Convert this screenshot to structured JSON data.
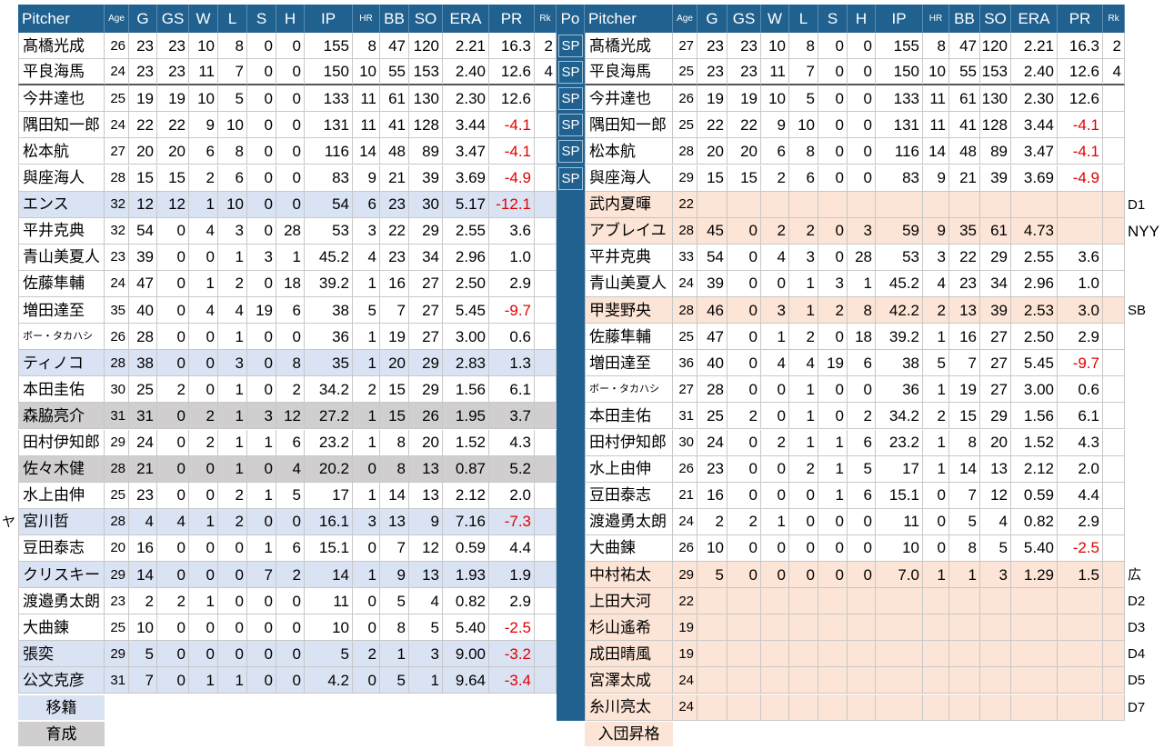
{
  "left": {
    "header": [
      "Pitcher",
      "Age",
      "G",
      "GS",
      "W",
      "L",
      "S",
      "H",
      "IP",
      "HR",
      "BB",
      "SO",
      "ERA",
      "PR",
      "Rk"
    ],
    "rows": [
      {
        "name": "髙橋光成",
        "stats": [
          "26",
          "23",
          "23",
          "10",
          "8",
          "0",
          "0",
          "155",
          "8",
          "47",
          "120",
          "2.21",
          "16.3",
          "2"
        ]
      },
      {
        "name": "平良海馬",
        "stats": [
          "24",
          "23",
          "23",
          "11",
          "7",
          "0",
          "0",
          "150",
          "10",
          "55",
          "153",
          "2.40",
          "12.6",
          "4"
        ]
      },
      {
        "name": "今井達也",
        "stats": [
          "25",
          "19",
          "19",
          "10",
          "5",
          "0",
          "0",
          "133",
          "11",
          "61",
          "130",
          "2.30",
          "12.6"
        ]
      },
      {
        "name": "隅田知一郎",
        "stats": [
          "24",
          "22",
          "22",
          "9",
          "10",
          "0",
          "0",
          "131",
          "11",
          "41",
          "128",
          "3.44",
          "-4.1"
        ]
      },
      {
        "name": "松本航",
        "stats": [
          "27",
          "20",
          "20",
          "6",
          "8",
          "0",
          "0",
          "116",
          "14",
          "48",
          "89",
          "3.47",
          "-4.1"
        ]
      },
      {
        "name": "與座海人",
        "stats": [
          "28",
          "15",
          "15",
          "2",
          "6",
          "0",
          "0",
          "83",
          "9",
          "21",
          "39",
          "3.69",
          "-4.9"
        ]
      },
      {
        "name": "エンス",
        "stats": [
          "32",
          "12",
          "12",
          "1",
          "10",
          "0",
          "0",
          "54",
          "6",
          "23",
          "30",
          "5.17",
          "-12.1"
        ],
        "fill": "#dae3f3"
      },
      {
        "name": "平井克典",
        "stats": [
          "32",
          "54",
          "0",
          "4",
          "3",
          "0",
          "28",
          "53",
          "3",
          "22",
          "29",
          "2.55",
          "3.6"
        ]
      },
      {
        "name": "青山美夏人",
        "stats": [
          "23",
          "39",
          "0",
          "0",
          "1",
          "3",
          "1",
          "45.2",
          "4",
          "23",
          "34",
          "2.96",
          "1.0"
        ]
      },
      {
        "name": "佐藤隼輔",
        "stats": [
          "24",
          "47",
          "0",
          "1",
          "2",
          "0",
          "18",
          "39.2",
          "1",
          "16",
          "27",
          "2.50",
          "2.9"
        ]
      },
      {
        "name": "増田達至",
        "stats": [
          "35",
          "40",
          "0",
          "4",
          "4",
          "19",
          "6",
          "38",
          "5",
          "7",
          "27",
          "5.45",
          "-9.7"
        ]
      },
      {
        "name": "ボー・タカハシ",
        "stats": [
          "26",
          "28",
          "0",
          "0",
          "1",
          "0",
          "0",
          "36",
          "1",
          "19",
          "27",
          "3.00",
          "0.6"
        ]
      },
      {
        "name": "ティノコ",
        "stats": [
          "28",
          "38",
          "0",
          "0",
          "3",
          "0",
          "8",
          "35",
          "1",
          "20",
          "29",
          "2.83",
          "1.3"
        ],
        "fill": "#dae3f3"
      },
      {
        "name": "本田圭佑",
        "stats": [
          "30",
          "25",
          "2",
          "0",
          "1",
          "0",
          "2",
          "34.2",
          "2",
          "15",
          "29",
          "1.56",
          "6.1"
        ]
      },
      {
        "name": "森脇亮介",
        "stats": [
          "31",
          "31",
          "0",
          "2",
          "1",
          "3",
          "12",
          "27.2",
          "1",
          "15",
          "26",
          "1.95",
          "3.7"
        ],
        "fill": "#d0cece"
      },
      {
        "name": "田村伊知郎",
        "stats": [
          "29",
          "24",
          "0",
          "2",
          "1",
          "1",
          "6",
          "23.2",
          "1",
          "8",
          "20",
          "1.52",
          "4.3"
        ]
      },
      {
        "name": "佐々木健",
        "stats": [
          "28",
          "21",
          "0",
          "0",
          "1",
          "0",
          "4",
          "20.2",
          "0",
          "8",
          "13",
          "0.87",
          "5.2"
        ],
        "fill": "#d0cece"
      },
      {
        "name": "水上由伸",
        "stats": [
          "25",
          "23",
          "0",
          "0",
          "2",
          "1",
          "5",
          "17",
          "1",
          "14",
          "13",
          "2.12",
          "2.0"
        ]
      },
      {
        "name": "宮川哲",
        "stats": [
          "28",
          "4",
          "4",
          "1",
          "2",
          "0",
          "0",
          "16.1",
          "3",
          "13",
          "9",
          "7.16",
          "-7.3"
        ],
        "fill": "#dae3f3",
        "note": "ヤ"
      },
      {
        "name": "豆田泰志",
        "stats": [
          "20",
          "16",
          "0",
          "0",
          "0",
          "1",
          "6",
          "15.1",
          "0",
          "7",
          "12",
          "0.59",
          "4.4"
        ]
      },
      {
        "name": "クリスキー",
        "stats": [
          "29",
          "14",
          "0",
          "0",
          "0",
          "7",
          "2",
          "14",
          "1",
          "9",
          "13",
          "1.93",
          "1.9"
        ],
        "fill": "#dae3f3"
      },
      {
        "name": "渡邉勇太朗",
        "stats": [
          "23",
          "2",
          "2",
          "1",
          "0",
          "0",
          "0",
          "11",
          "0",
          "5",
          "4",
          "0.82",
          "2.9"
        ]
      },
      {
        "name": "大曲錬",
        "stats": [
          "25",
          "10",
          "0",
          "0",
          "0",
          "0",
          "0",
          "10",
          "0",
          "8",
          "5",
          "5.40",
          "-2.5"
        ]
      },
      {
        "name": "張奕",
        "stats": [
          "29",
          "5",
          "0",
          "0",
          "0",
          "0",
          "0",
          "5",
          "2",
          "1",
          "3",
          "9.00",
          "-3.2"
        ],
        "fill": "#dae3f3"
      },
      {
        "name": "公文克彦",
        "stats": [
          "31",
          "7",
          "0",
          "1",
          "1",
          "0",
          "0",
          "4.2",
          "0",
          "5",
          "1",
          "9.64",
          "-3.4"
        ],
        "fill": "#dae3f3"
      }
    ],
    "legend": [
      {
        "label": "移籍",
        "fill": "#dae3f3"
      },
      {
        "label": "育成",
        "fill": "#d0cece"
      }
    ]
  },
  "po": {
    "header": "Po",
    "values": [
      "SP",
      "SP",
      "SP",
      "SP",
      "SP",
      "SP"
    ]
  },
  "right": {
    "header": [
      "Pitcher",
      "Age",
      "G",
      "GS",
      "W",
      "L",
      "S",
      "H",
      "IP",
      "HR",
      "BB",
      "SO",
      "ERA",
      "PR",
      "Rk"
    ],
    "rows": [
      {
        "name": "髙橋光成",
        "stats": [
          "27",
          "23",
          "23",
          "10",
          "8",
          "0",
          "0",
          "155",
          "8",
          "47",
          "120",
          "2.21",
          "16.3",
          "2"
        ]
      },
      {
        "name": "平良海馬",
        "stats": [
          "25",
          "23",
          "23",
          "11",
          "7",
          "0",
          "0",
          "150",
          "10",
          "55",
          "153",
          "2.40",
          "12.6",
          "4"
        ]
      },
      {
        "name": "今井達也",
        "stats": [
          "26",
          "19",
          "19",
          "10",
          "5",
          "0",
          "0",
          "133",
          "11",
          "61",
          "130",
          "2.30",
          "12.6"
        ]
      },
      {
        "name": "隅田知一郎",
        "stats": [
          "25",
          "22",
          "22",
          "9",
          "10",
          "0",
          "0",
          "131",
          "11",
          "41",
          "128",
          "3.44",
          "-4.1"
        ]
      },
      {
        "name": "松本航",
        "stats": [
          "28",
          "20",
          "20",
          "6",
          "8",
          "0",
          "0",
          "116",
          "14",
          "48",
          "89",
          "3.47",
          "-4.1"
        ]
      },
      {
        "name": "與座海人",
        "stats": [
          "29",
          "15",
          "15",
          "2",
          "6",
          "0",
          "0",
          "83",
          "9",
          "21",
          "39",
          "3.69",
          "-4.9"
        ]
      },
      {
        "name": "武内夏暉",
        "stats": [
          "22"
        ],
        "fill": "#fce4d6",
        "note": "D1"
      },
      {
        "name": "アブレイユ",
        "stats": [
          "28",
          "45",
          "0",
          "2",
          "2",
          "0",
          "3",
          "59",
          "9",
          "35",
          "61",
          "4.73"
        ],
        "fill": "#fce4d6",
        "note": "NYY"
      },
      {
        "name": "平井克典",
        "stats": [
          "33",
          "54",
          "0",
          "4",
          "3",
          "0",
          "28",
          "53",
          "3",
          "22",
          "29",
          "2.55",
          "3.6"
        ]
      },
      {
        "name": "青山美夏人",
        "stats": [
          "24",
          "39",
          "0",
          "0",
          "1",
          "3",
          "1",
          "45.2",
          "4",
          "23",
          "34",
          "2.96",
          "1.0"
        ]
      },
      {
        "name": "甲斐野央",
        "stats": [
          "28",
          "46",
          "0",
          "3",
          "1",
          "2",
          "8",
          "42.2",
          "2",
          "13",
          "39",
          "2.53",
          "3.0"
        ],
        "fill": "#fce4d6",
        "note": "SB"
      },
      {
        "name": "佐藤隼輔",
        "stats": [
          "25",
          "47",
          "0",
          "1",
          "2",
          "0",
          "18",
          "39.2",
          "1",
          "16",
          "27",
          "2.50",
          "2.9"
        ]
      },
      {
        "name": "増田達至",
        "stats": [
          "36",
          "40",
          "0",
          "4",
          "4",
          "19",
          "6",
          "38",
          "5",
          "7",
          "27",
          "5.45",
          "-9.7"
        ]
      },
      {
        "name": "ボー・タカハシ",
        "stats": [
          "27",
          "28",
          "0",
          "0",
          "1",
          "0",
          "0",
          "36",
          "1",
          "19",
          "27",
          "3.00",
          "0.6"
        ]
      },
      {
        "name": "本田圭佑",
        "stats": [
          "31",
          "25",
          "2",
          "0",
          "1",
          "0",
          "2",
          "34.2",
          "2",
          "15",
          "29",
          "1.56",
          "6.1"
        ]
      },
      {
        "name": "田村伊知郎",
        "stats": [
          "30",
          "24",
          "0",
          "2",
          "1",
          "1",
          "6",
          "23.2",
          "1",
          "8",
          "20",
          "1.52",
          "4.3"
        ]
      },
      {
        "name": "水上由伸",
        "stats": [
          "26",
          "23",
          "0",
          "0",
          "2",
          "1",
          "5",
          "17",
          "1",
          "14",
          "13",
          "2.12",
          "2.0"
        ]
      },
      {
        "name": "豆田泰志",
        "stats": [
          "21",
          "16",
          "0",
          "0",
          "0",
          "1",
          "6",
          "15.1",
          "0",
          "7",
          "12",
          "0.59",
          "4.4"
        ]
      },
      {
        "name": "渡邉勇太朗",
        "stats": [
          "24",
          "2",
          "2",
          "1",
          "0",
          "0",
          "0",
          "11",
          "0",
          "5",
          "4",
          "0.82",
          "2.9"
        ]
      },
      {
        "name": "大曲錬",
        "stats": [
          "26",
          "10",
          "0",
          "0",
          "0",
          "0",
          "0",
          "10",
          "0",
          "8",
          "5",
          "5.40",
          "-2.5"
        ]
      },
      {
        "name": "中村祐太",
        "stats": [
          "29",
          "5",
          "0",
          "0",
          "0",
          "0",
          "0",
          "7.0",
          "1",
          "1",
          "3",
          "1.29",
          "1.5"
        ],
        "fill": "#fce4d6",
        "note": "広"
      },
      {
        "name": "上田大河",
        "stats": [
          "22"
        ],
        "fill": "#fce4d6",
        "note": "D2"
      },
      {
        "name": "杉山遙希",
        "stats": [
          "19"
        ],
        "fill": "#fce4d6",
        "note": "D3"
      },
      {
        "name": "成田晴風",
        "stats": [
          "19"
        ],
        "fill": "#fce4d6",
        "note": "D4"
      },
      {
        "name": "宮澤太成",
        "stats": [
          "24"
        ],
        "fill": "#fce4d6",
        "note": "D5"
      },
      {
        "name": "糸川亮太",
        "stats": [
          "24"
        ],
        "fill": "#fce4d6",
        "note": "D7"
      }
    ],
    "legend": [
      {
        "label": "入団昇格",
        "fill": "#fce4d6"
      }
    ]
  }
}
